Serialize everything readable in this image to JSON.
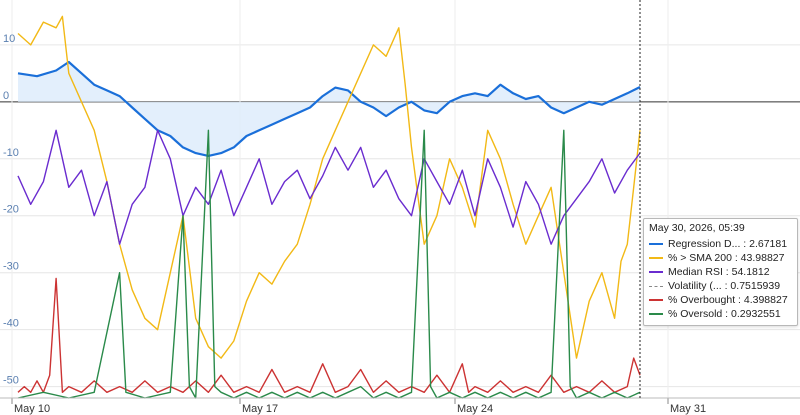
{
  "chart_data": {
    "type": "line",
    "ylim": [
      -52,
      17
    ],
    "y_ticks": [
      10,
      0,
      -10,
      -20,
      -30,
      -40,
      -50
    ],
    "x_ticks": [
      "May 10",
      "May 17",
      "May 24",
      "May 31"
    ],
    "grid": true,
    "crosshair_x": "May 30, 2026, 05:39",
    "series": [
      {
        "name": "Regression D...",
        "color": "#1a6fd9",
        "style": "solid",
        "fill": "#dcebfb",
        "points": [
          [
            0,
            5
          ],
          [
            3,
            4.5
          ],
          [
            6,
            5.5
          ],
          [
            8,
            7
          ],
          [
            10,
            5
          ],
          [
            12,
            3
          ],
          [
            14,
            2
          ],
          [
            16,
            1
          ],
          [
            18,
            -1
          ],
          [
            20,
            -3
          ],
          [
            22,
            -5
          ],
          [
            24,
            -6
          ],
          [
            26,
            -8
          ],
          [
            28,
            -9
          ],
          [
            30,
            -9.5
          ],
          [
            32,
            -9
          ],
          [
            34,
            -8
          ],
          [
            36,
            -6
          ],
          [
            38,
            -5
          ],
          [
            40,
            -4
          ],
          [
            42,
            -3
          ],
          [
            44,
            -2
          ],
          [
            46,
            -1
          ],
          [
            48,
            1
          ],
          [
            50,
            2.5
          ],
          [
            52,
            2
          ],
          [
            54,
            0
          ],
          [
            56,
            -1
          ],
          [
            58,
            -2.5
          ],
          [
            60,
            -1
          ],
          [
            62,
            0
          ],
          [
            64,
            -1.5
          ],
          [
            66,
            -2
          ],
          [
            68,
            0
          ],
          [
            70,
            1
          ],
          [
            72,
            1.5
          ],
          [
            74,
            1
          ],
          [
            76,
            3
          ],
          [
            78,
            1.5
          ],
          [
            80,
            0.5
          ],
          [
            82,
            1
          ],
          [
            84,
            -1
          ],
          [
            86,
            -2
          ],
          [
            88,
            -1
          ],
          [
            90,
            0
          ],
          [
            92,
            -0.5
          ],
          [
            94,
            0.5
          ],
          [
            96,
            1.5
          ],
          [
            98,
            2.6
          ]
        ]
      },
      {
        "name": "% > SMA 200",
        "color": "#f2b916",
        "style": "solid",
        "points": [
          [
            0,
            12
          ],
          [
            2,
            10
          ],
          [
            4,
            14
          ],
          [
            6,
            13
          ],
          [
            7,
            15
          ],
          [
            8,
            5
          ],
          [
            10,
            0
          ],
          [
            12,
            -5
          ],
          [
            14,
            -14
          ],
          [
            16,
            -25
          ],
          [
            18,
            -33
          ],
          [
            20,
            -38
          ],
          [
            22,
            -40
          ],
          [
            24,
            -30
          ],
          [
            26,
            -20
          ],
          [
            28,
            -38
          ],
          [
            30,
            -43
          ],
          [
            32,
            -45
          ],
          [
            34,
            -42
          ],
          [
            36,
            -35
          ],
          [
            38,
            -30
          ],
          [
            40,
            -32
          ],
          [
            42,
            -28
          ],
          [
            44,
            -25
          ],
          [
            46,
            -18
          ],
          [
            48,
            -10
          ],
          [
            50,
            -5
          ],
          [
            52,
            0
          ],
          [
            54,
            5
          ],
          [
            56,
            10
          ],
          [
            58,
            8
          ],
          [
            60,
            13
          ],
          [
            61,
            3
          ],
          [
            62,
            -8
          ],
          [
            64,
            -25
          ],
          [
            66,
            -20
          ],
          [
            68,
            -10
          ],
          [
            70,
            -15
          ],
          [
            72,
            -22
          ],
          [
            74,
            -5
          ],
          [
            76,
            -10
          ],
          [
            78,
            -18
          ],
          [
            80,
            -25
          ],
          [
            82,
            -20
          ],
          [
            84,
            -15
          ],
          [
            86,
            -30
          ],
          [
            88,
            -45
          ],
          [
            90,
            -35
          ],
          [
            92,
            -30
          ],
          [
            94,
            -38
          ],
          [
            95,
            -28
          ],
          [
            96,
            -25
          ],
          [
            97,
            -15
          ],
          [
            98,
            -5
          ]
        ]
      },
      {
        "name": "Median RSI",
        "color": "#6a2ccf",
        "style": "solid",
        "points": [
          [
            0,
            -13
          ],
          [
            2,
            -18
          ],
          [
            4,
            -14
          ],
          [
            6,
            -5
          ],
          [
            8,
            -15
          ],
          [
            10,
            -12
          ],
          [
            12,
            -20
          ],
          [
            14,
            -14
          ],
          [
            16,
            -25
          ],
          [
            18,
            -18
          ],
          [
            20,
            -15
          ],
          [
            22,
            -5
          ],
          [
            24,
            -10
          ],
          [
            26,
            -20
          ],
          [
            28,
            -15
          ],
          [
            30,
            -18
          ],
          [
            32,
            -12
          ],
          [
            34,
            -20
          ],
          [
            36,
            -15
          ],
          [
            38,
            -10
          ],
          [
            40,
            -18
          ],
          [
            42,
            -14
          ],
          [
            44,
            -12
          ],
          [
            46,
            -17
          ],
          [
            48,
            -13
          ],
          [
            50,
            -8
          ],
          [
            52,
            -12
          ],
          [
            54,
            -8
          ],
          [
            56,
            -15
          ],
          [
            58,
            -12
          ],
          [
            60,
            -17
          ],
          [
            62,
            -20
          ],
          [
            64,
            -10
          ],
          [
            66,
            -14
          ],
          [
            68,
            -18
          ],
          [
            70,
            -12
          ],
          [
            72,
            -20
          ],
          [
            74,
            -10
          ],
          [
            76,
            -15
          ],
          [
            78,
            -22
          ],
          [
            80,
            -14
          ],
          [
            82,
            -18
          ],
          [
            84,
            -25
          ],
          [
            86,
            -20
          ],
          [
            88,
            -17
          ],
          [
            90,
            -14
          ],
          [
            92,
            -10
          ],
          [
            94,
            -16
          ],
          [
            96,
            -12
          ],
          [
            98,
            -9
          ]
        ]
      },
      {
        "name": "Volatility (...",
        "color": "#888888",
        "style": "dashed",
        "points": []
      },
      {
        "name": "% Overbought",
        "color": "#cc3333",
        "style": "solid",
        "points": [
          [
            0,
            -51
          ],
          [
            1,
            -50
          ],
          [
            2,
            -51
          ],
          [
            3,
            -49
          ],
          [
            4,
            -51
          ],
          [
            5,
            -48
          ],
          [
            6,
            -31
          ],
          [
            7,
            -51
          ],
          [
            8,
            -50
          ],
          [
            10,
            -51
          ],
          [
            12,
            -49
          ],
          [
            14,
            -51
          ],
          [
            16,
            -50
          ],
          [
            18,
            -51
          ],
          [
            20,
            -49
          ],
          [
            22,
            -51
          ],
          [
            24,
            -50
          ],
          [
            26,
            -51
          ],
          [
            28,
            -49
          ],
          [
            30,
            -51
          ],
          [
            32,
            -48
          ],
          [
            34,
            -51
          ],
          [
            36,
            -50
          ],
          [
            38,
            -51
          ],
          [
            40,
            -47
          ],
          [
            42,
            -51
          ],
          [
            44,
            -50
          ],
          [
            46,
            -51
          ],
          [
            48,
            -46
          ],
          [
            50,
            -51
          ],
          [
            52,
            -50
          ],
          [
            54,
            -47
          ],
          [
            56,
            -51
          ],
          [
            58,
            -49
          ],
          [
            60,
            -51
          ],
          [
            62,
            -50
          ],
          [
            64,
            -51
          ],
          [
            66,
            -48
          ],
          [
            68,
            -51
          ],
          [
            70,
            -46
          ],
          [
            71,
            -51
          ],
          [
            72,
            -50
          ],
          [
            74,
            -51
          ],
          [
            76,
            -49
          ],
          [
            78,
            -51
          ],
          [
            80,
            -50
          ],
          [
            82,
            -51
          ],
          [
            84,
            -48
          ],
          [
            86,
            -51
          ],
          [
            88,
            -50
          ],
          [
            90,
            -51
          ],
          [
            92,
            -49
          ],
          [
            94,
            -51
          ],
          [
            96,
            -50
          ],
          [
            97,
            -45
          ],
          [
            98,
            -48
          ]
        ]
      },
      {
        "name": "% Oversold",
        "color": "#2a8a4a",
        "style": "solid",
        "points": [
          [
            0,
            -52
          ],
          [
            4,
            -51
          ],
          [
            8,
            -52
          ],
          [
            12,
            -51
          ],
          [
            16,
            -30
          ],
          [
            17,
            -51
          ],
          [
            20,
            -52
          ],
          [
            24,
            -51
          ],
          [
            26,
            -20
          ],
          [
            27,
            -50
          ],
          [
            28,
            -52
          ],
          [
            30,
            -5
          ],
          [
            31,
            -50
          ],
          [
            32,
            -51
          ],
          [
            34,
            -52
          ],
          [
            36,
            -51
          ],
          [
            38,
            -52
          ],
          [
            40,
            -51
          ],
          [
            42,
            -52
          ],
          [
            44,
            -51
          ],
          [
            46,
            -52
          ],
          [
            48,
            -51
          ],
          [
            50,
            -52
          ],
          [
            52,
            -51
          ],
          [
            54,
            -50
          ],
          [
            56,
            -52
          ],
          [
            58,
            -51
          ],
          [
            60,
            -52
          ],
          [
            62,
            -51
          ],
          [
            64,
            -5
          ],
          [
            65,
            -50
          ],
          [
            66,
            -52
          ],
          [
            68,
            -51
          ],
          [
            70,
            -52
          ],
          [
            72,
            -51
          ],
          [
            74,
            -52
          ],
          [
            76,
            -51
          ],
          [
            78,
            -52
          ],
          [
            80,
            -51
          ],
          [
            82,
            -52
          ],
          [
            84,
            -51
          ],
          [
            86,
            -5
          ],
          [
            87,
            -50
          ],
          [
            88,
            -52
          ],
          [
            90,
            -51
          ],
          [
            92,
            -52
          ],
          [
            94,
            -51
          ],
          [
            96,
            -52
          ],
          [
            98,
            -51
          ]
        ]
      }
    ]
  },
  "tooltip": {
    "date": "May 30, 2026, 05:39",
    "rows": [
      {
        "label": "Regression D... : 2.67181",
        "color": "#1a6fd9",
        "style": "solid",
        "icon": "line-swatch"
      },
      {
        "label": "% > SMA 200 : 43.98827",
        "color": "#f2b916",
        "style": "solid",
        "icon": "line-swatch"
      },
      {
        "label": "Median RSI : 54.1812",
        "color": "#6a2ccf",
        "style": "solid",
        "icon": "line-swatch"
      },
      {
        "label": "Volatility (... : 0.7515939",
        "color": "#888888",
        "style": "dashed",
        "icon": "dashed-line-swatch"
      },
      {
        "label": "% Overbought : 4.398827",
        "color": "#cc3333",
        "style": "solid",
        "icon": "line-swatch"
      },
      {
        "label": "% Oversold : 0.2932551",
        "color": "#2a8a4a",
        "style": "solid",
        "icon": "line-swatch"
      }
    ]
  }
}
